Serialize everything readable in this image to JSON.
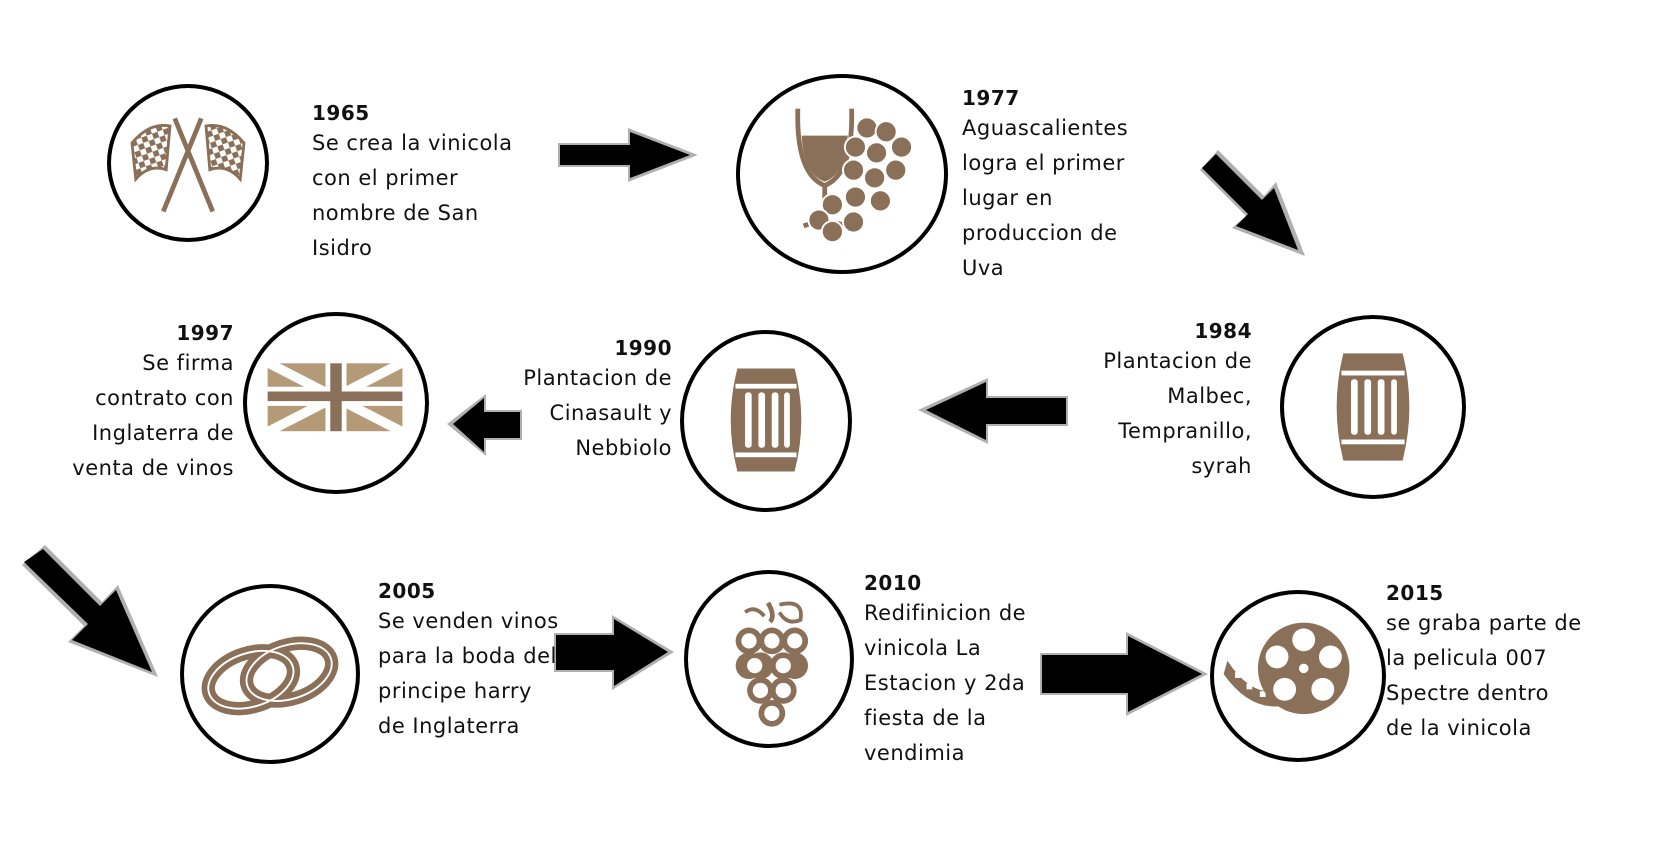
{
  "events": [
    {
      "id": "1965",
      "year": "1965",
      "lines": [
        "Se crea la vinicola",
        "con el primer",
        "nombre de San",
        "Isidro"
      ],
      "icon": "checkered-flags-icon"
    },
    {
      "id": "1977",
      "year": "1977",
      "lines": [
        "Aguascalientes",
        "logra el primer",
        "lugar en",
        "produccion de",
        "Uva"
      ],
      "icon": "wine-glass-grapes-icon"
    },
    {
      "id": "1984",
      "year": "1984",
      "lines": [
        "Plantacion de",
        "Malbec,",
        "Tempranillo,",
        "syrah"
      ],
      "icon": "barrel-icon"
    },
    {
      "id": "1990",
      "year": "1990",
      "lines": [
        "Plantacion  de",
        "Cinasault y",
        "Nebbiolo"
      ],
      "icon": "barrel-icon"
    },
    {
      "id": "1997",
      "year": "1997",
      "lines": [
        "Se firma",
        "contrato con",
        "Inglaterra de",
        "venta de vinos"
      ],
      "icon": "union-jack-flag-icon"
    },
    {
      "id": "2005",
      "year": "2005",
      "lines": [
        "Se venden vinos",
        "para la boda del",
        "principe harry",
        "de Inglaterra"
      ],
      "icon": "wedding-rings-icon"
    },
    {
      "id": "2010",
      "year": "2010",
      "lines": [
        "Redifinicion de",
        "vinicola La",
        "Estacion y 2da",
        "fiesta de la",
        "vendimia"
      ],
      "icon": "grapes-bunch-icon"
    },
    {
      "id": "2015",
      "year": "2015",
      "lines": [
        "se graba parte de",
        "la pelicula 007",
        "Spectre dentro",
        "de la vinicola"
      ],
      "icon": "film-reel-icon"
    }
  ],
  "colors": {
    "outline": "#000000",
    "icon_brown": "#8a7058",
    "icon_light": "#b59a78",
    "arrow_fill": "#000000",
    "arrow_shadow": "#b0b0b0"
  }
}
